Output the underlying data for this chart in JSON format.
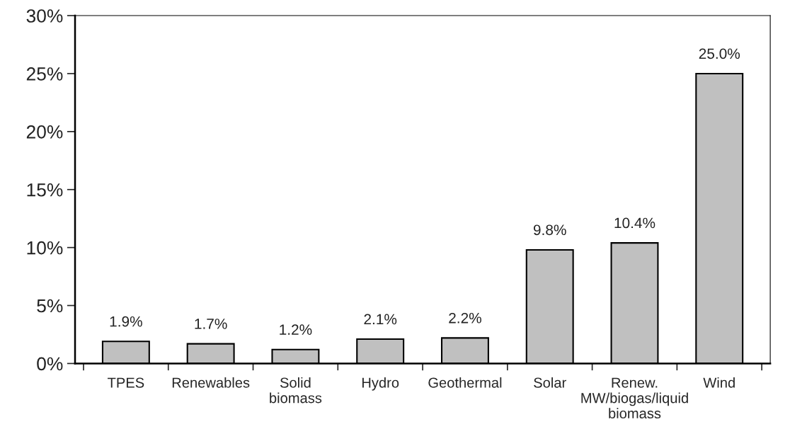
{
  "chart_data": {
    "type": "bar",
    "categories": [
      "TPES",
      "Renewables",
      "Solid\nbiomass",
      "Hydro",
      "Geothermal",
      "Solar",
      "Renew.\nMW/biogas/liquid\nbiomass",
      "Wind"
    ],
    "values": [
      1.9,
      1.7,
      1.2,
      2.1,
      2.2,
      9.8,
      10.4,
      25.0
    ],
    "value_labels": [
      "1.9%",
      "1.7%",
      "1.2%",
      "2.1%",
      "2.2%",
      "9.8%",
      "10.4%",
      "25.0%"
    ],
    "color": "#c0c0c0",
    "ylim": [
      0,
      30
    ],
    "yticks": [
      {
        "value": 0,
        "label": "0%"
      },
      {
        "value": 5,
        "label": "5%"
      },
      {
        "value": 10,
        "label": "10%"
      },
      {
        "value": 15,
        "label": "15%"
      },
      {
        "value": 20,
        "label": "20%"
      },
      {
        "value": 25,
        "label": "25%"
      },
      {
        "value": 30,
        "label": "30%"
      }
    ],
    "grid": false,
    "legend": false
  }
}
